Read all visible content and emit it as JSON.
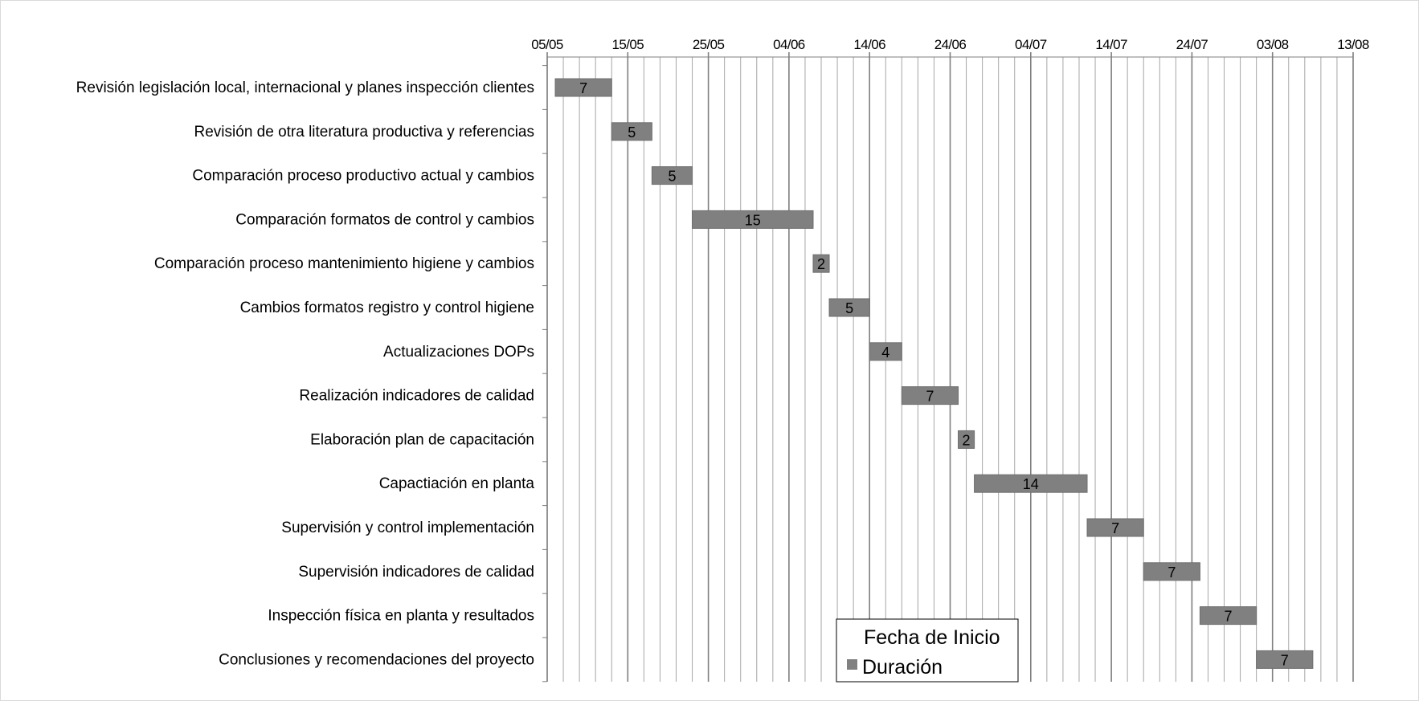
{
  "chart_data": {
    "type": "bar",
    "subtype": "gantt",
    "orientation": "horizontal",
    "x_axis": {
      "ticks": [
        "05/05",
        "15/05",
        "25/05",
        "04/06",
        "14/06",
        "24/06",
        "04/07",
        "14/07",
        "24/07",
        "03/08",
        "13/08"
      ],
      "range": [
        "05/05",
        "13/08"
      ],
      "position": "top",
      "grid": true,
      "minor_gridlines_days": 2
    },
    "tasks": [
      {
        "name": "Revisión legislación local, internacional y planes inspección clientes",
        "start": "06/05",
        "duration": 7
      },
      {
        "name": "Revisión de otra literatura productiva y referencias",
        "start": "13/05",
        "duration": 5
      },
      {
        "name": "Comparación proceso productivo actual y cambios",
        "start": "18/05",
        "duration": 5
      },
      {
        "name": "Comparación formatos de control y cambios",
        "start": "23/05",
        "duration": 15
      },
      {
        "name": "Comparación proceso mantenimiento higiene y cambios",
        "start": "07/06",
        "duration": 2
      },
      {
        "name": "Cambios formatos registro y control higiene",
        "start": "09/06",
        "duration": 5
      },
      {
        "name": "Actualizaciones DOPs",
        "start": "14/06",
        "duration": 4
      },
      {
        "name": "Realización indicadores de calidad",
        "start": "18/06",
        "duration": 7
      },
      {
        "name": "Elaboración plan de capacitación",
        "start": "25/06",
        "duration": 2
      },
      {
        "name": "Capactiación en planta",
        "start": "27/06",
        "duration": 14
      },
      {
        "name": "Supervisión  y control implementación",
        "start": "11/07",
        "duration": 7
      },
      {
        "name": "Supervisión  indicadores de calidad",
        "start": "18/07",
        "duration": 7
      },
      {
        "name": "Inspección física en planta y resultados",
        "start": "25/07",
        "duration": 7
      },
      {
        "name": "Conclusiones y recomendaciones del proyecto",
        "start": "01/08",
        "duration": 7
      }
    ],
    "series": [
      {
        "name": "Fecha de Inicio",
        "color": "none"
      },
      {
        "name": "Duración",
        "color": "#808080"
      }
    ],
    "legend": {
      "position": "bottom-center",
      "entries": [
        "Fecha de Inicio",
        "Duración"
      ]
    },
    "colors": {
      "bar": "#808080",
      "bar_border": "#6e6e6e",
      "grid": "#a6a6a6",
      "axis": "#7f7f7f"
    }
  }
}
